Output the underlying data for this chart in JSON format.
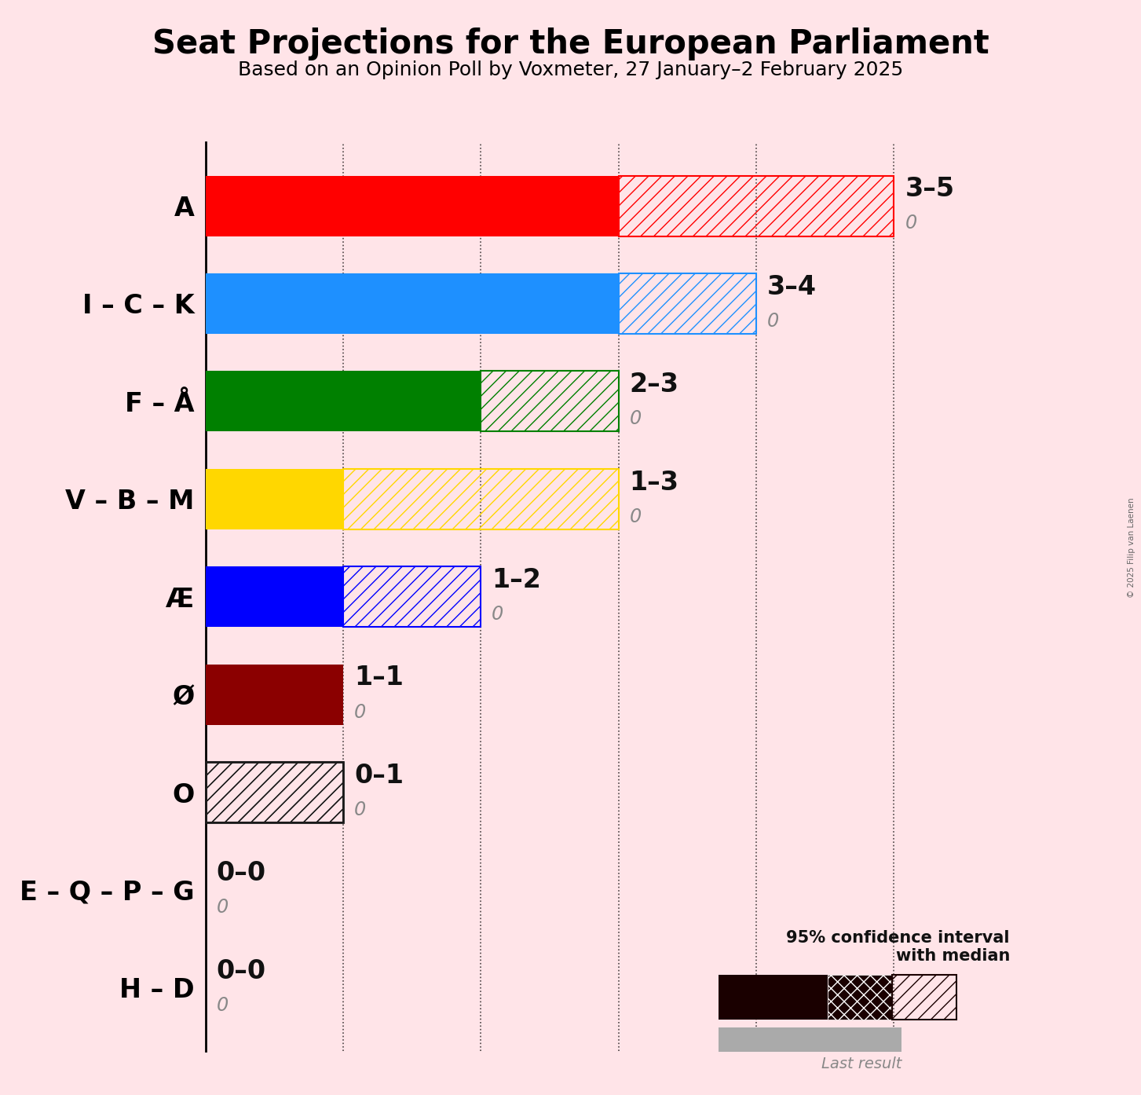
{
  "title": "Seat Projections for the European Parliament",
  "subtitle": "Based on an Opinion Poll by Voxmeter, 27 January–2 February 2025",
  "copyright": "© 2025 Filip van Laenen",
  "background_color": "#FFE4E8",
  "parties": [
    "A",
    "I – C – K",
    "F – Å",
    "V – B – M",
    "Æ",
    "Ø",
    "O",
    "E – Q – P – G",
    "H – D"
  ],
  "low": [
    3,
    3,
    2,
    1,
    1,
    1,
    0,
    0,
    0
  ],
  "median": [
    3,
    3,
    2,
    1,
    1,
    1,
    0,
    0,
    0
  ],
  "high": [
    5,
    4,
    3,
    3,
    2,
    1,
    1,
    0,
    0
  ],
  "last_result": [
    0,
    0,
    0,
    0,
    0,
    0,
    0,
    0,
    0
  ],
  "colors": [
    "#FF0000",
    "#1E90FF",
    "#008000",
    "#FFD700",
    "#0000FF",
    "#8B0000",
    "#1a1a1a",
    "#1a1a1a",
    "#1a1a1a"
  ],
  "range_labels": [
    "3–5",
    "3–4",
    "2–3",
    "1–3",
    "1–2",
    "1–1",
    "0–1",
    "0–0",
    "0–0"
  ],
  "xlim": [
    0,
    5.8
  ],
  "xticks": [
    0,
    1,
    2,
    3,
    4,
    5
  ],
  "title_fontsize": 30,
  "subtitle_fontsize": 18,
  "label_fontsize": 24,
  "bar_height": 0.62
}
